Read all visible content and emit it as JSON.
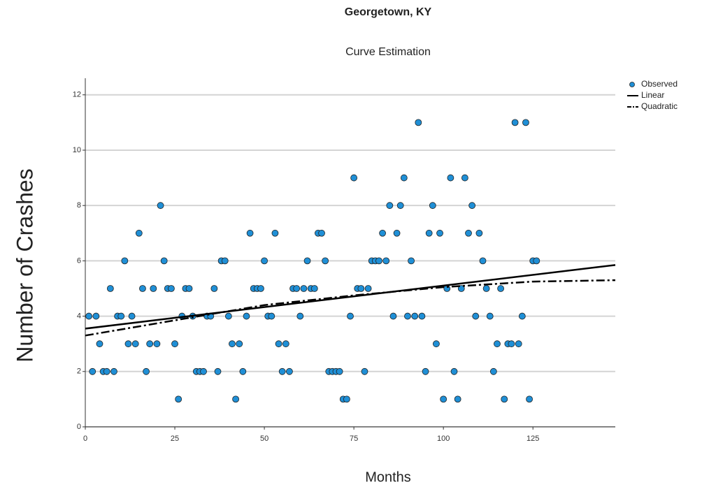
{
  "chart_data": {
    "type": "scatter",
    "title": "Georgetown, KY",
    "subtitle": "Curve Estimation",
    "x_label": "Months",
    "y_label": "Number of Crashes",
    "xlim": [
      0,
      148
    ],
    "ylim": [
      0,
      12.6
    ],
    "xticks": [
      0,
      25,
      50,
      75,
      100,
      125
    ],
    "yticks": [
      0,
      2,
      4,
      6,
      8,
      10,
      12
    ],
    "grid": true,
    "legend": "top-right",
    "series": [
      {
        "name": "Observed",
        "color": "#1f8fd6",
        "style": "marker",
        "x": [
          1,
          2,
          3,
          4,
          5,
          6,
          7,
          8,
          9,
          10,
          11,
          12,
          13,
          14,
          15,
          16,
          17,
          18,
          19,
          20,
          21,
          22,
          23,
          24,
          25,
          26,
          27,
          28,
          29,
          30,
          31,
          32,
          33,
          34,
          35,
          36,
          37,
          38,
          39,
          40,
          41,
          42,
          43,
          44,
          45,
          46,
          47,
          48,
          49,
          50,
          51,
          52,
          53,
          54,
          55,
          56,
          57,
          58,
          59,
          60,
          61,
          62,
          63,
          64,
          65,
          66,
          67,
          68,
          69,
          70,
          71,
          72,
          73,
          74,
          75,
          76,
          77,
          78,
          79,
          80,
          81,
          82,
          83,
          84,
          85,
          86,
          87,
          88,
          89,
          90,
          91,
          92,
          93,
          94,
          95,
          96,
          97,
          98,
          99,
          100,
          101,
          102,
          103,
          104,
          105,
          106,
          107,
          108,
          109,
          110,
          111,
          112,
          113,
          114,
          115,
          116,
          117,
          118,
          119,
          120,
          121,
          122,
          123,
          124,
          125,
          126
        ],
        "values": [
          4,
          2,
          4,
          3,
          2,
          2,
          5,
          2,
          4,
          4,
          6,
          3,
          4,
          3,
          7,
          5,
          2,
          3,
          5,
          3,
          8,
          6,
          5,
          5,
          3,
          1,
          4,
          5,
          5,
          4,
          2,
          2,
          2,
          4,
          4,
          5,
          2,
          6,
          6,
          4,
          3,
          1,
          3,
          2,
          4,
          7,
          5,
          5,
          5,
          6,
          4,
          4,
          7,
          3,
          2,
          3,
          2,
          5,
          5,
          4,
          5,
          6,
          5,
          5,
          7,
          7,
          6,
          2,
          2,
          2,
          2,
          1,
          1,
          4,
          9,
          5,
          5,
          2,
          5,
          6,
          6,
          6,
          7,
          6,
          8,
          4,
          7,
          8,
          9,
          4,
          6,
          4,
          11,
          4,
          2,
          7,
          8,
          3,
          7,
          1,
          5,
          9,
          2,
          1,
          5,
          9,
          7,
          8,
          4,
          7,
          6,
          5,
          4,
          2,
          3,
          5,
          1,
          3,
          3,
          11,
          3,
          4,
          11,
          1,
          6,
          6
        ]
      },
      {
        "name": "Linear",
        "color": "#000000",
        "style": "solid",
        "x": [
          0,
          148
        ],
        "values": [
          3.55,
          5.85
        ]
      },
      {
        "name": "Quadratic",
        "color": "#000000",
        "style": "dash-dot",
        "x": [
          0,
          25,
          50,
          75,
          100,
          125,
          148
        ],
        "values": [
          3.3,
          3.85,
          4.4,
          4.75,
          5.05,
          5.25,
          5.3
        ]
      }
    ]
  }
}
